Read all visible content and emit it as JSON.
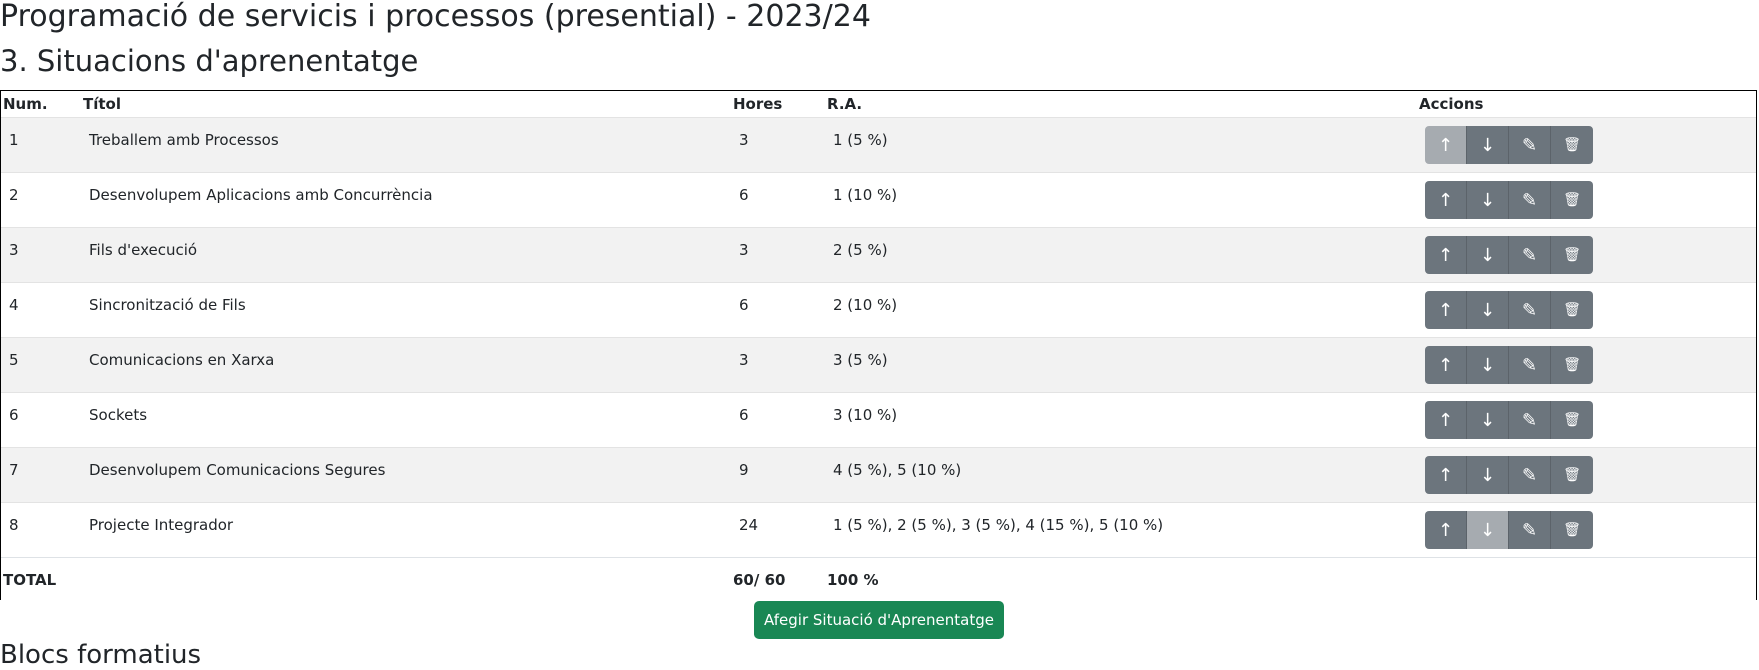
{
  "page": {
    "title": "Programació de servicis i processos (presential) - 2023/24",
    "section_title": "3. Situacions d'aprenentatge",
    "bottom_heading": "Blocs formatius"
  },
  "table": {
    "headers": {
      "num": "Num.",
      "title": "Títol",
      "hours": "Hores",
      "ra": "R.A.",
      "actions": "Accions"
    },
    "rows": [
      {
        "num": "1",
        "title": "Treballem amb Processos",
        "hours": "3",
        "ra": "1 (5 %)",
        "up_disabled": true,
        "down_disabled": false
      },
      {
        "num": "2",
        "title": "Desenvolupem Aplicacions amb Concurrència",
        "hours": "6",
        "ra": "1 (10 %)",
        "up_disabled": false,
        "down_disabled": false
      },
      {
        "num": "3",
        "title": "Fils d'execució",
        "hours": "3",
        "ra": "2 (5 %)",
        "up_disabled": false,
        "down_disabled": false
      },
      {
        "num": "4",
        "title": "Sincronització de Fils",
        "hours": "6",
        "ra": "2 (10 %)",
        "up_disabled": false,
        "down_disabled": false
      },
      {
        "num": "5",
        "title": "Comunicacions en Xarxa",
        "hours": "3",
        "ra": "3 (5 %)",
        "up_disabled": false,
        "down_disabled": false
      },
      {
        "num": "6",
        "title": "Sockets",
        "hours": "6",
        "ra": "3 (10 %)",
        "up_disabled": false,
        "down_disabled": false
      },
      {
        "num": "7",
        "title": "Desenvolupem Comunicacions Segures",
        "hours": "9",
        "ra": "4 (5 %), 5 (10 %)",
        "up_disabled": false,
        "down_disabled": false
      },
      {
        "num": "8",
        "title": "Projecte Integrador",
        "hours": "24",
        "ra": "1 (5 %), 2 (5 %), 3 (5 %), 4 (15 %), 5 (10 %)",
        "up_disabled": false,
        "down_disabled": true
      }
    ],
    "footer": {
      "label": "TOTAL",
      "hours": "60/ 60",
      "ra": "100 %"
    },
    "action_icons": [
      "arrow-up-icon",
      "arrow-down-icon",
      "pencil-icon",
      "trash-icon"
    ]
  },
  "add_button_label": "Afegir Situació d'Aprenentatge",
  "colors": {
    "action_button": "#6c757d",
    "action_button_disabled": "#a6abb0",
    "add_button": "#198754"
  }
}
